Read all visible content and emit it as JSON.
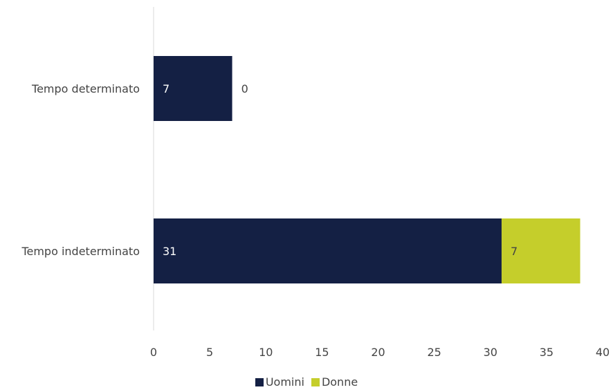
{
  "chart_data": {
    "type": "bar",
    "orientation": "horizontal",
    "stacked": true,
    "categories": [
      "Tempo determinato",
      "Tempo indeterminato"
    ],
    "series": [
      {
        "name": "Uomini",
        "values": [
          7,
          31
        ],
        "color": "#142044",
        "label_color": "#ffffff"
      },
      {
        "name": "Donne",
        "values": [
          0,
          7
        ],
        "color": "#c5ce2b",
        "label_color": "#444444"
      }
    ],
    "xlim": [
      0,
      40
    ],
    "xticks": [
      0,
      5,
      10,
      15,
      20,
      25,
      30,
      35,
      40
    ],
    "grid": false,
    "legend_position": "bottom"
  }
}
